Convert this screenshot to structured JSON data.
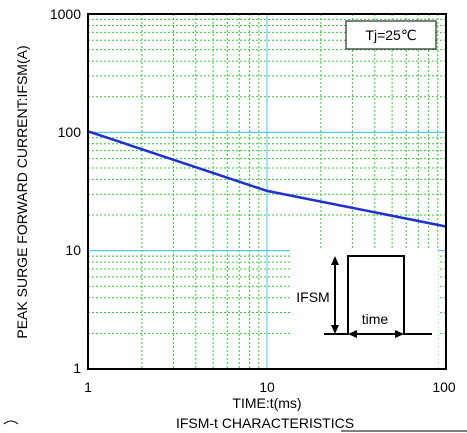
{
  "chart_data": {
    "type": "line",
    "scale": {
      "x": "log",
      "y": "log"
    },
    "xlim": [
      1,
      100
    ],
    "ylim": [
      1,
      1000
    ],
    "xlabel": "TIME:t(ms)",
    "ylabel": "PEAK SURGE FORWARD CURRENT:IFSM(A)",
    "caption": "IFSM-t CHARACTERISTICS",
    "x_ticks": [
      "1",
      "10",
      "100"
    ],
    "y_ticks": [
      "1",
      "10",
      "100",
      "1000"
    ],
    "annotation": "Tj=25℃",
    "inset": {
      "amplitude_label": "IFSM",
      "width_label": "time"
    },
    "grid": true,
    "colors": {
      "line": "#1f2fd0",
      "grid_major": "#4fc3e8",
      "grid_minor": "#33cc33"
    },
    "series": [
      {
        "x": [
          1,
          10,
          100
        ],
        "y": [
          102,
          32,
          16
        ]
      }
    ]
  }
}
